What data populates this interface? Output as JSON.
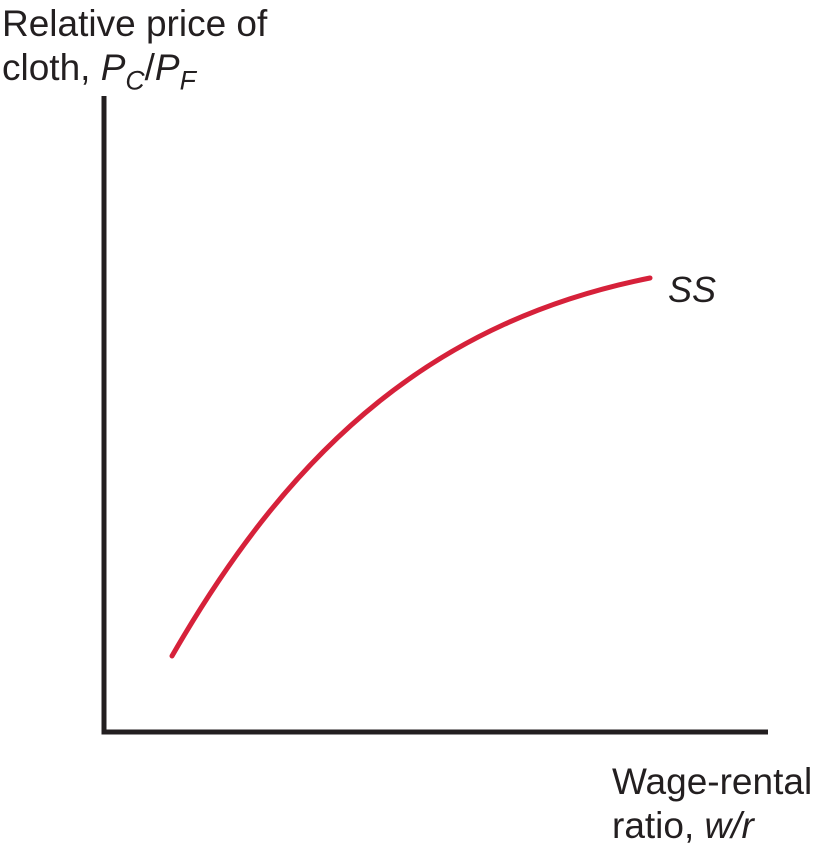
{
  "y_axis_label": {
    "line1": "Relative price of",
    "line2_prefix": "cloth, ",
    "p": "P",
    "sub_c": "C",
    "slash": "/",
    "sub_f": "F"
  },
  "x_axis_label": {
    "line1": "Wage-rental",
    "line2_prefix": "ratio, ",
    "var": "w/r"
  },
  "curve": {
    "label": "SS",
    "color": "#d6213a"
  },
  "axis_color": "#231f20",
  "chart_data": {
    "type": "line",
    "series": [
      {
        "name": "SS",
        "x": [
          0.0,
          0.1,
          0.2,
          0.3,
          0.4,
          0.5,
          0.6,
          0.7,
          0.8,
          0.9,
          1.0
        ],
        "y": [
          0.0,
          0.2,
          0.37,
          0.51,
          0.63,
          0.73,
          0.81,
          0.88,
          0.93,
          0.97,
          1.0
        ]
      }
    ]
  }
}
